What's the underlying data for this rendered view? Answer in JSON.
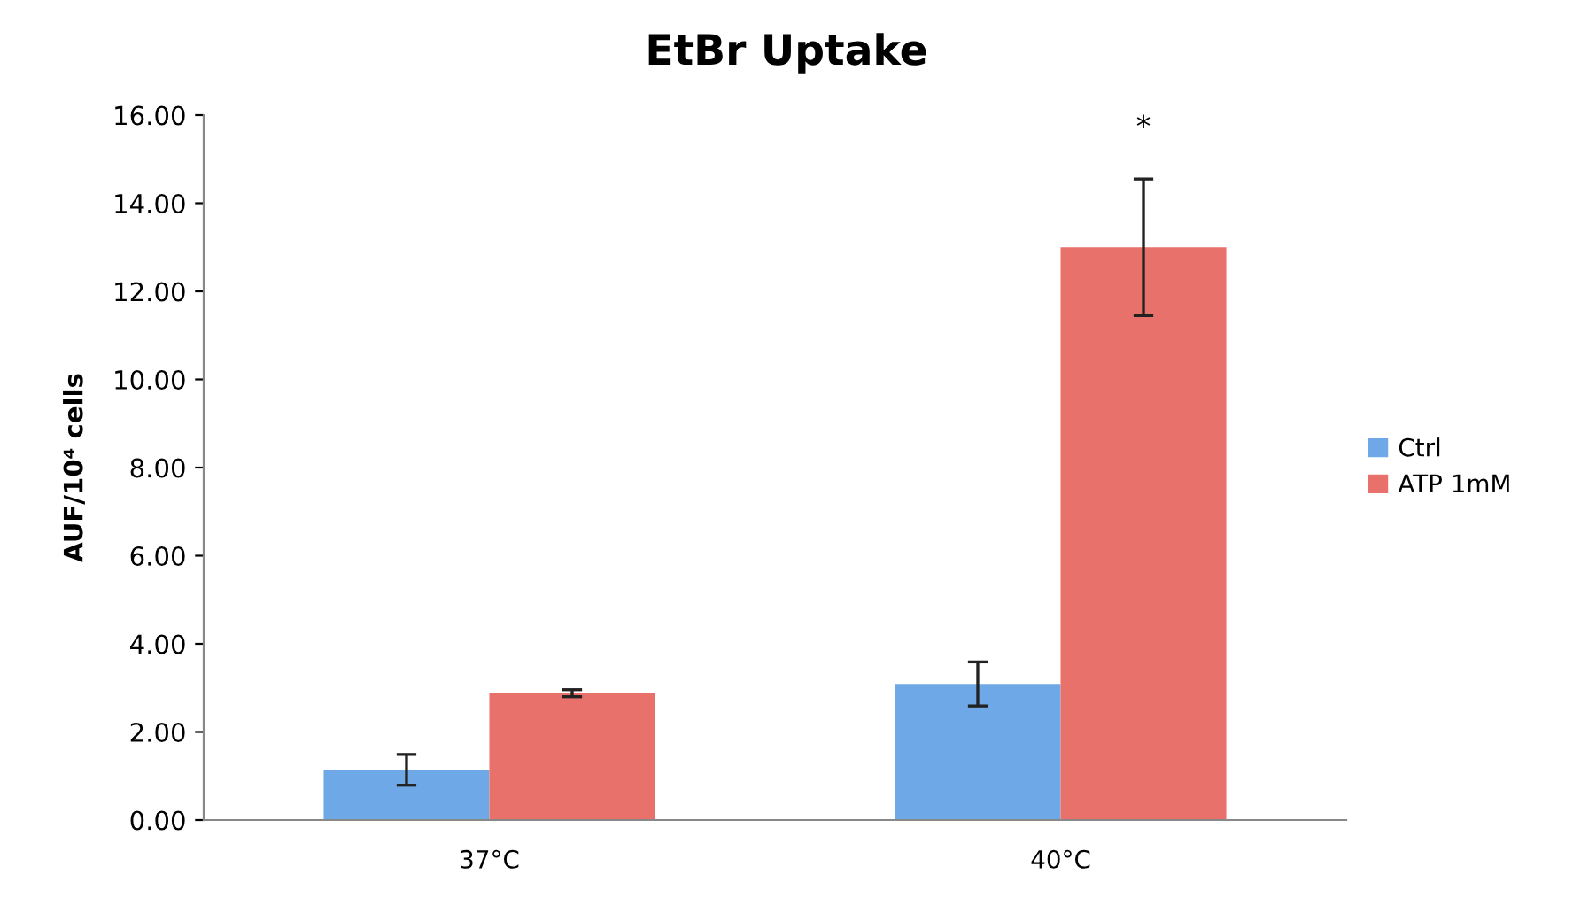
{
  "chart_data": {
    "type": "bar",
    "title": "EtBr Uptake",
    "ylabel": "AUF/10⁴ cells",
    "categories": [
      "37°C",
      "40°C"
    ],
    "series": [
      {
        "name": "Ctrl",
        "color": "#6fa8e6",
        "values": [
          1.14,
          3.09
        ],
        "errors": [
          0.35,
          0.5
        ]
      },
      {
        "name": "ATP 1mM",
        "color": "#e9716b",
        "values": [
          2.88,
          13.0
        ],
        "errors": [
          0.08,
          1.55
        ]
      }
    ],
    "ylim": [
      0,
      16
    ],
    "yticks": [
      {
        "value": 0,
        "label": "0.00"
      },
      {
        "value": 2,
        "label": "2.00"
      },
      {
        "value": 4,
        "label": "4.00"
      },
      {
        "value": 6,
        "label": "6.00"
      },
      {
        "value": 8,
        "label": "8.00"
      },
      {
        "value": 10,
        "label": "10.00"
      },
      {
        "value": 12,
        "label": "12.00"
      },
      {
        "value": 14,
        "label": "14.00"
      },
      {
        "value": 16,
        "label": "16.00"
      }
    ],
    "annotations": [
      "*"
    ],
    "legend": "right",
    "grid": false
  }
}
